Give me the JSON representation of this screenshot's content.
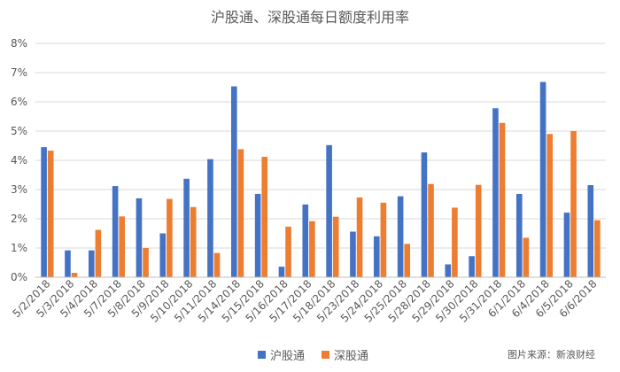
{
  "chart_data": {
    "type": "bar",
    "title": "沪股通、深股通每日额度利用率",
    "categories": [
      "5/2/2018",
      "5/3/2018",
      "5/4/2018",
      "5/7/2018",
      "5/8/2018",
      "5/9/2018",
      "5/10/2018",
      "5/11/2018",
      "5/14/2018",
      "5/15/2018",
      "5/16/2018",
      "5/17/2018",
      "5/18/2018",
      "5/23/2018",
      "5/24/2018",
      "5/25/2018",
      "5/28/2018",
      "5/29/2018",
      "5/30/2018",
      "5/31/2018",
      "6/1/2018",
      "6/4/2018",
      "6/5/2018",
      "6/6/2018"
    ],
    "series": [
      {
        "name": "沪股通",
        "color": "#4472C4",
        "values": [
          4.45,
          0.92,
          0.92,
          3.12,
          2.7,
          1.5,
          3.37,
          4.04,
          6.53,
          2.85,
          0.36,
          2.49,
          4.52,
          1.56,
          1.4,
          2.77,
          4.27,
          0.44,
          0.72,
          5.78,
          2.85,
          6.68,
          2.21,
          3.15
        ]
      },
      {
        "name": "深股通",
        "color": "#ED7D31",
        "values": [
          4.33,
          0.15,
          1.62,
          2.08,
          1.0,
          2.68,
          2.4,
          0.83,
          4.38,
          4.12,
          1.73,
          1.92,
          2.07,
          2.73,
          2.55,
          1.14,
          3.19,
          2.38,
          3.16,
          5.28,
          1.35,
          4.9,
          5.0,
          1.95
        ]
      }
    ],
    "yticks": [
      "0%",
      "1%",
      "2%",
      "3%",
      "4%",
      "5%",
      "6%",
      "7%",
      "8%"
    ],
    "ylim": [
      0,
      8
    ],
    "grid": true,
    "legend_position": "bottom"
  },
  "source_note": "图片来源：新浪财经"
}
